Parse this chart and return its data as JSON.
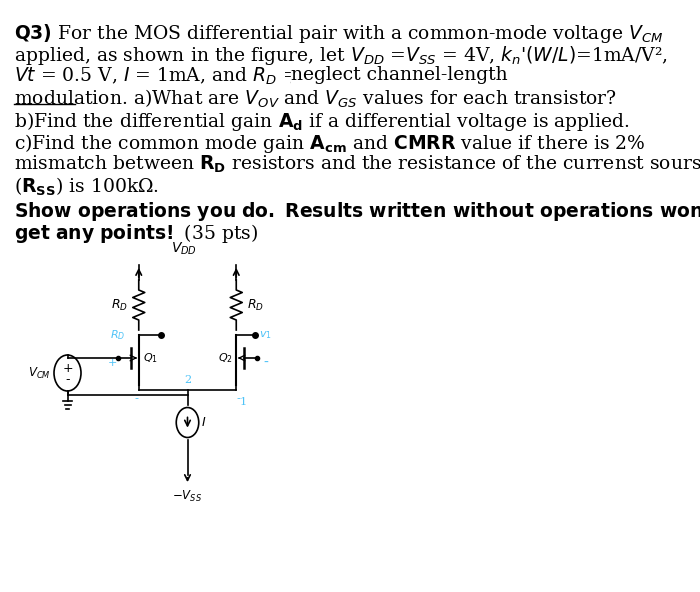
{
  "bg_color": "#ffffff",
  "text_color": "#000000",
  "blue_color": "#4fc3f7",
  "title_line1": "Q3) For the MOS differential pair with a common-mode voltage V",
  "title_line1_sub": "CM",
  "figsize": [
    7.0,
    5.92
  ],
  "dpi": 100
}
